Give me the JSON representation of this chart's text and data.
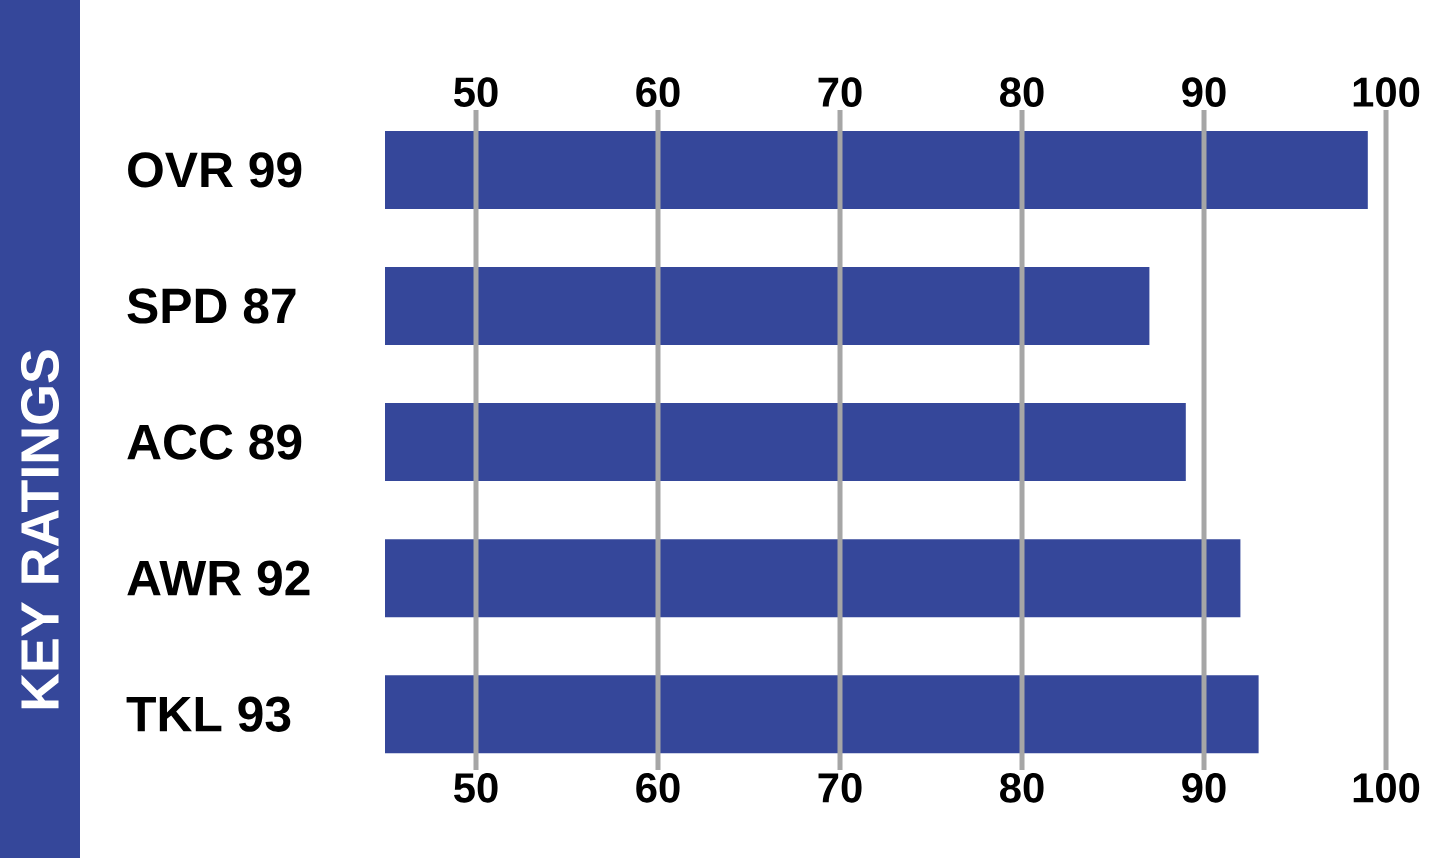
{
  "chart_data": {
    "type": "bar",
    "orientation": "horizontal",
    "title": "KEY RATINGS",
    "categories": [
      "OVR 99",
      "SPD 87",
      "ACC 89",
      "AWR 92",
      "TKL 93"
    ],
    "values": [
      99,
      87,
      89,
      92,
      93
    ],
    "color": "#35479a",
    "xlim": [
      45,
      100
    ],
    "xticks": [
      50,
      60,
      70,
      80,
      90,
      100
    ],
    "x2lim": [
      45,
      100
    ],
    "x2ticks": [
      50,
      60,
      70,
      80,
      90,
      100
    ],
    "grid": "x",
    "legend": false
  }
}
